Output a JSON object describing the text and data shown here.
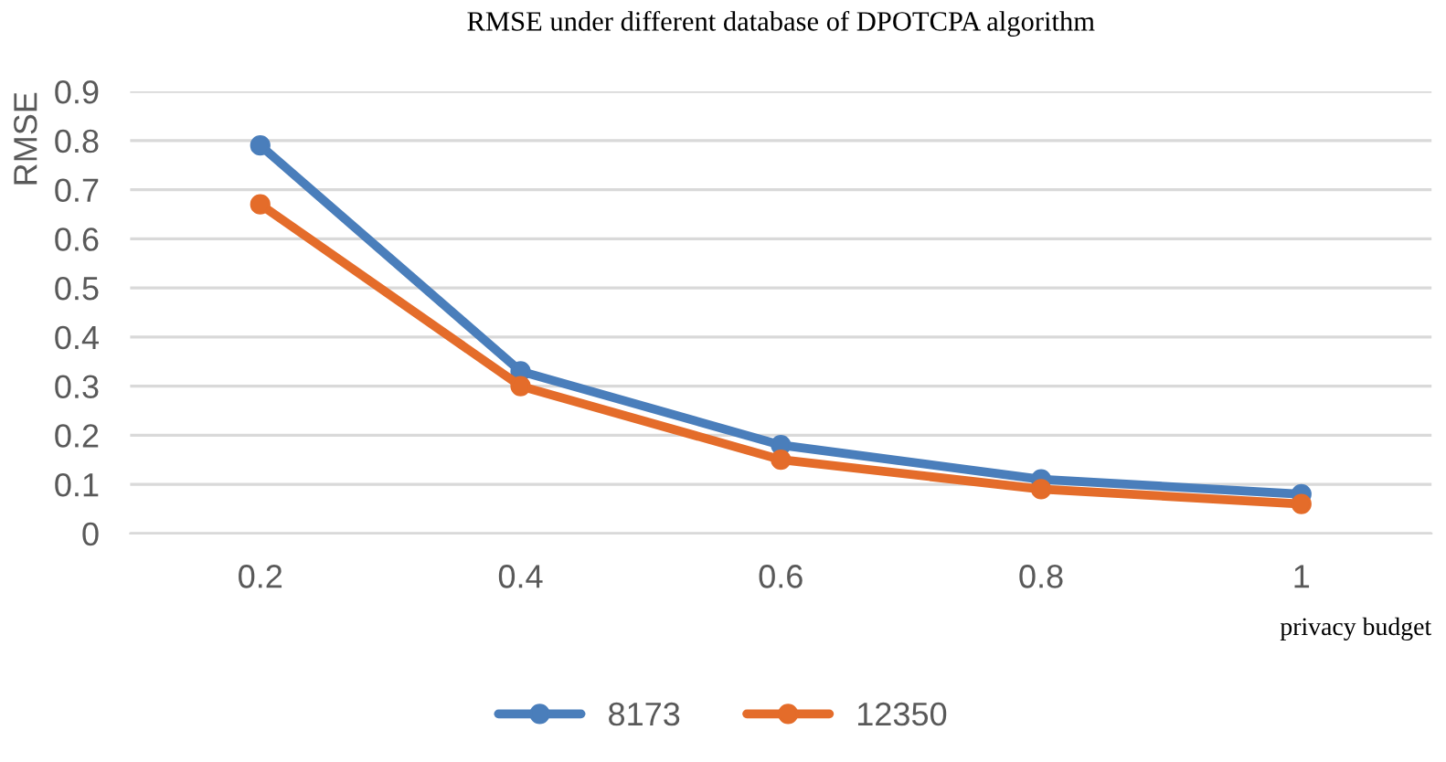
{
  "chart_data": {
    "type": "line",
    "title": "RMSE under different database of DPOTCPA algorithm",
    "xlabel": "privacy budget",
    "ylabel": "RMSE",
    "categories": [
      "0.2",
      "0.4",
      "0.6",
      "0.8",
      "1"
    ],
    "series": [
      {
        "name": "8173",
        "color": "#4a7ebb",
        "values": [
          0.79,
          0.33,
          0.18,
          0.11,
          0.08
        ]
      },
      {
        "name": "12350",
        "color": "#e46c2a",
        "values": [
          0.67,
          0.3,
          0.15,
          0.09,
          0.06
        ]
      }
    ],
    "ylim": [
      0,
      0.9
    ],
    "yticks": [
      0,
      0.1,
      0.2,
      0.3,
      0.4,
      0.5,
      0.6,
      0.7,
      0.8,
      0.9
    ],
    "grid": "y",
    "legend": "bottom",
    "marker": "circle",
    "line_style": "solid"
  }
}
